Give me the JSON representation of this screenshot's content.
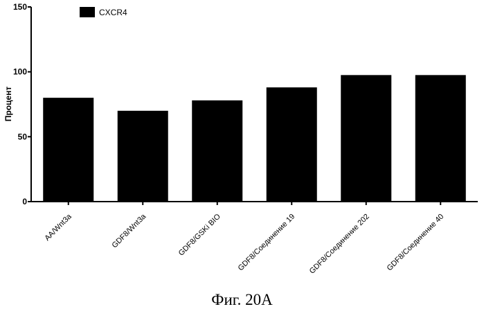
{
  "chart_data": {
    "type": "bar",
    "title": "",
    "xlabel": "",
    "ylabel": "Процент",
    "ylim": [
      0,
      150
    ],
    "yticks": [
      0,
      50,
      100,
      150
    ],
    "grid": false,
    "legend_position": "top-left",
    "categories": [
      "AA/Wnt3a",
      "GDF8/Wnt3a",
      "GDF8/GSKi BIO",
      "GDF8/Соединение 19",
      "GDF8/Соединение 202",
      "GDF8/Соединение 40"
    ],
    "series": [
      {
        "name": "CXCR4",
        "color": "#000000",
        "values": [
          80,
          70,
          78,
          88,
          97.5,
          97.5
        ]
      }
    ]
  },
  "caption": "Фиг. 20A"
}
